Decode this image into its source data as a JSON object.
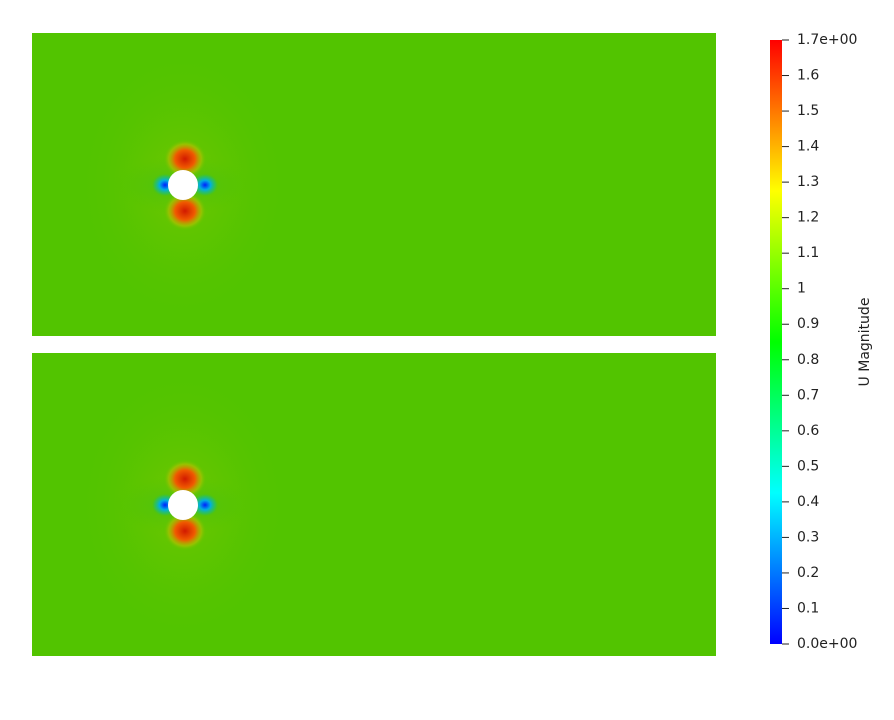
{
  "colorbar": {
    "title": "U Magnitude",
    "range": [
      0,
      1.7
    ],
    "ticks": [
      {
        "value": 0,
        "label": "0.0e+00"
      },
      0.1,
      0.2,
      0.3,
      0.4,
      0.5,
      0.6,
      0.7,
      0.8,
      0.9,
      1,
      1.1,
      1.2,
      1.3,
      1.4,
      1.5,
      1.6,
      {
        "value": 1.7,
        "label": "1.7e+00"
      }
    ],
    "colors": [
      "#0000ff",
      "#00ffff",
      "#00ff00",
      "#ffff00",
      "#ff0000"
    ]
  }
}
